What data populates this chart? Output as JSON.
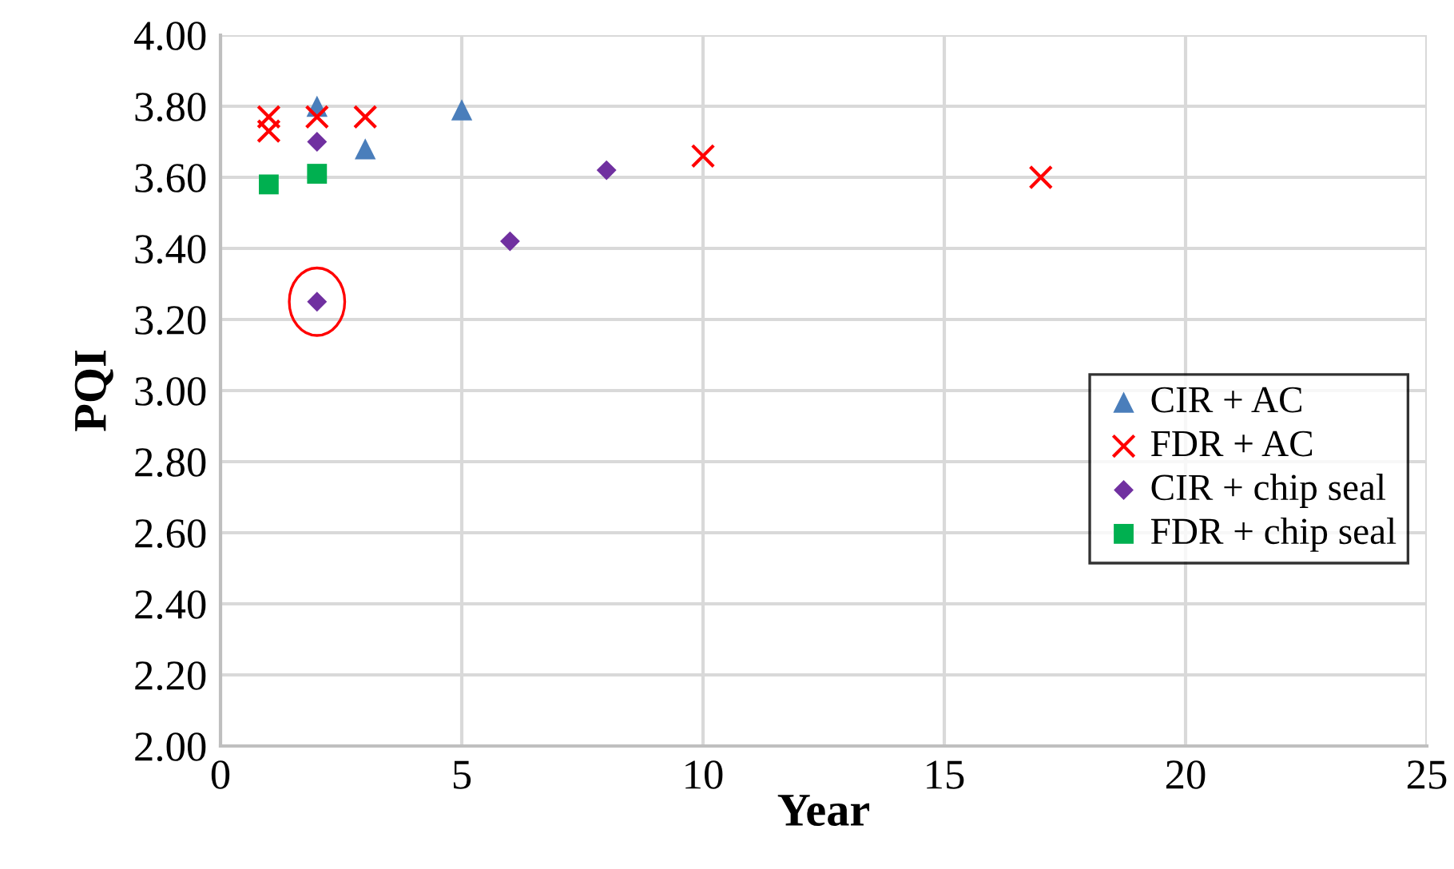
{
  "chart_data": {
    "type": "scatter",
    "xlabel": "Year",
    "ylabel": "PQI",
    "xlim": [
      0,
      25
    ],
    "xticks": [
      0,
      5,
      10,
      15,
      20,
      25
    ],
    "ylim": [
      2.0,
      4.0
    ],
    "yticks": [
      {
        "value": 2.0,
        "label": "2.00"
      },
      {
        "value": 2.2,
        "label": "2.20"
      },
      {
        "value": 2.4,
        "label": "2.40"
      },
      {
        "value": 2.6,
        "label": "2.60"
      },
      {
        "value": 2.8,
        "label": "2.80"
      },
      {
        "value": 3.0,
        "label": "3.00"
      },
      {
        "value": 3.2,
        "label": "3.20"
      },
      {
        "value": 3.4,
        "label": "3.40"
      },
      {
        "value": 3.6,
        "label": "3.60"
      },
      {
        "value": 3.8,
        "label": "3.80"
      },
      {
        "value": 4.0,
        "label": "4.00"
      }
    ],
    "grid": true,
    "legend": "right",
    "series": [
      {
        "name": "CIR + AC",
        "color": "#4a7ebb",
        "marker": "triangle",
        "x": [
          2,
          3,
          5
        ],
        "values": [
          3.8,
          3.68,
          3.79
        ]
      },
      {
        "name": "FDR + AC",
        "color": "#ff0000",
        "marker": "cross",
        "x": [
          1,
          1,
          2,
          3,
          10,
          17
        ],
        "values": [
          3.77,
          3.73,
          3.77,
          3.77,
          3.66,
          3.6
        ]
      },
      {
        "name": "CIR + chip seal",
        "color": "#7030a0",
        "marker": "diamond",
        "x": [
          2,
          6,
          8,
          2
        ],
        "values": [
          3.7,
          3.42,
          3.62,
          3.25
        ]
      },
      {
        "name": "FDR + chip seal",
        "color": "#00b050",
        "marker": "square",
        "x": [
          1,
          2
        ],
        "values": [
          3.58,
          3.61
        ]
      }
    ]
  }
}
